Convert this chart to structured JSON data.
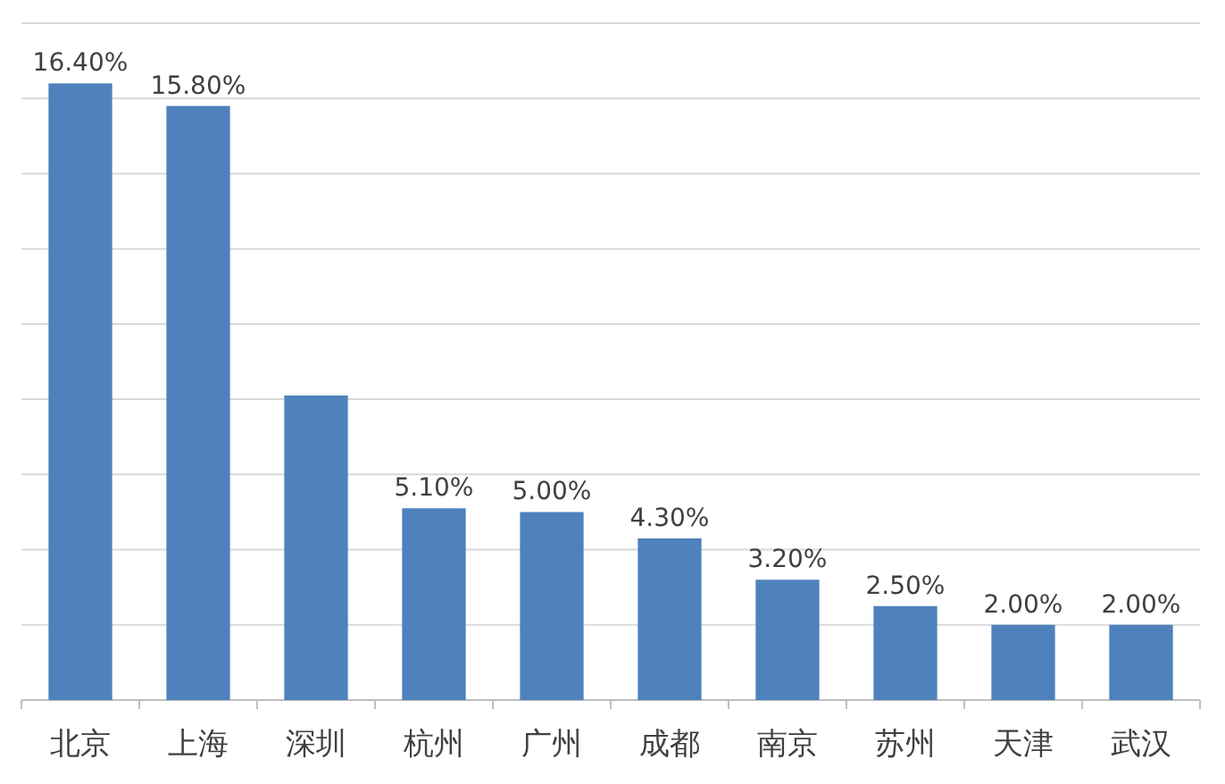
{
  "chart_data": {
    "type": "bar",
    "categories": [
      "北京",
      "上海",
      "深圳",
      "杭州",
      "广州",
      "成都",
      "南京",
      "苏州",
      "天津",
      "武汉"
    ],
    "values": [
      16.4,
      15.8,
      8.1,
      5.1,
      5.0,
      4.3,
      3.2,
      2.5,
      2.0,
      2.0
    ],
    "value_labels": [
      "16.40%",
      "15.80%",
      null,
      "5.10%",
      "5.00%",
      "4.30%",
      "3.20%",
      "2.50%",
      "2.00%",
      "2.00%"
    ],
    "color": "#4f81bd",
    "ylim": [
      0,
      18
    ],
    "yticks": [
      {
        "value": 0,
        "label": null
      },
      {
        "value": 2,
        "label": null
      },
      {
        "value": 4,
        "label": null
      },
      {
        "value": 6,
        "label": null
      },
      {
        "value": 8,
        "label": null
      },
      {
        "value": 10,
        "label": null
      },
      {
        "value": 12,
        "label": null
      },
      {
        "value": 14,
        "label": null
      },
      {
        "value": 16,
        "label": null
      },
      {
        "value": 18,
        "label": null
      }
    ],
    "grid": "y",
    "tick_labels": "x"
  }
}
